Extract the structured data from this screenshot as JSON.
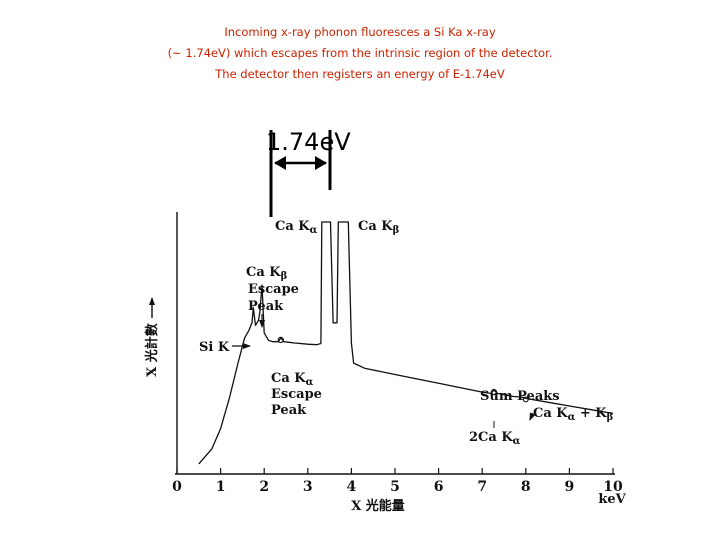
{
  "caption": {
    "line1": "Incoming x-ray phonon fluoresces a Si Ka x-ray",
    "line2": "(~ 1.74eV) which escapes from the intrinsic region of the detector.",
    "line3": "The detector then registers an energy of E-1.74eV"
  },
  "colors": {
    "caption": "#cc2200",
    "ink": "#111111"
  },
  "chart_data": {
    "type": "line",
    "xlabel": "X 光能量",
    "xunit": "keV",
    "ylabel": "X 光計數",
    "xlim": [
      0,
      10
    ],
    "xticks": [
      0,
      1,
      2,
      3,
      4,
      5,
      6,
      7,
      8,
      9,
      10
    ],
    "yticks_shown": false,
    "grid": false,
    "series": [
      {
        "points": [
          [
            0.5,
            4
          ],
          [
            0.8,
            10
          ],
          [
            1.0,
            18
          ],
          [
            1.2,
            30
          ],
          [
            1.4,
            44
          ],
          [
            1.55,
            54
          ],
          [
            1.65,
            57
          ],
          [
            1.72,
            60
          ],
          [
            1.75,
            66
          ],
          [
            1.8,
            59
          ],
          [
            1.87,
            61
          ],
          [
            1.9,
            64
          ],
          [
            1.95,
            75
          ],
          [
            2.0,
            56
          ],
          [
            2.1,
            53
          ],
          [
            2.2,
            52.5
          ],
          [
            2.32,
            52.5
          ],
          [
            2.38,
            54
          ],
          [
            2.45,
            52.5
          ],
          [
            2.7,
            52
          ],
          [
            3.0,
            51.5
          ],
          [
            3.2,
            51.3
          ],
          [
            3.3,
            51.8
          ],
          [
            3.32,
            100
          ],
          [
            3.52,
            100
          ],
          [
            3.58,
            60
          ],
          [
            3.67,
            60
          ],
          [
            3.7,
            100
          ],
          [
            3.93,
            100
          ],
          [
            4.0,
            52
          ],
          [
            4.05,
            44
          ],
          [
            4.3,
            42
          ],
          [
            5.0,
            39.5
          ],
          [
            6.0,
            36
          ],
          [
            7.0,
            32.5
          ],
          [
            7.2,
            32
          ],
          [
            7.27,
            33.3
          ],
          [
            7.35,
            32
          ],
          [
            7.7,
            30.8
          ],
          [
            7.9,
            30.5
          ],
          [
            8.0,
            30
          ],
          [
            8.5,
            28.5
          ],
          [
            9.0,
            27
          ],
          [
            9.5,
            25.5
          ],
          [
            10.0,
            24
          ]
        ]
      }
    ],
    "annotations": [
      {
        "label": "Ca Kα",
        "x": 3.4
      },
      {
        "label": "Ca Kβ",
        "x": 3.85
      },
      {
        "label": "Ca Kβ Escape Peak",
        "lines": [
          "Ca Kβ",
          "Escape",
          "Peak"
        ],
        "x": 1.95
      },
      {
        "label": "Si K",
        "x": 1.72
      },
      {
        "label": "Ca Kα Escape Peak",
        "lines": [
          "Ca Kα",
          "Escape",
          "Peak"
        ],
        "x": 2.38
      },
      {
        "label": "Sum Peaks"
      },
      {
        "label": "Ca Kα + Kβ",
        "x": 8.0
      },
      {
        "label": "2Ca Kα",
        "x": 7.27
      }
    ],
    "bracket": {
      "label": "1.74eV",
      "x_from": 2.2,
      "x_to": 3.55
    }
  }
}
